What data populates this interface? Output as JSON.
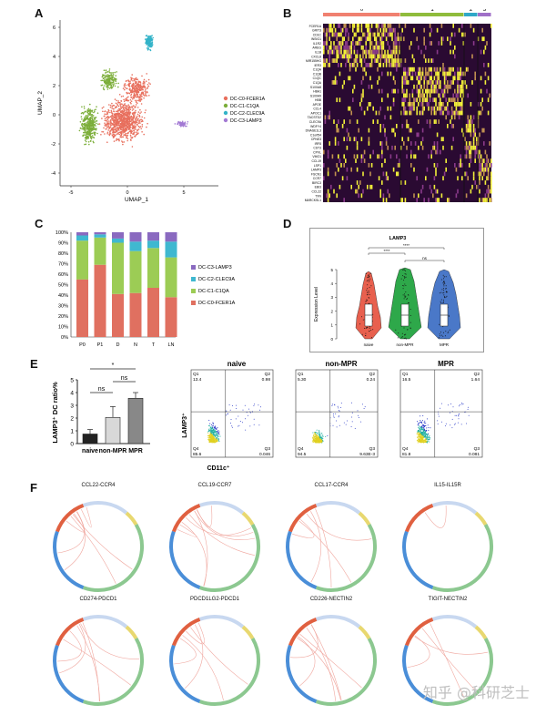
{
  "panel_labels": {
    "a": "A",
    "b": "B",
    "c": "C",
    "d": "D",
    "e": "E",
    "f": "F"
  },
  "panel_a": {
    "xlabel": "UMAP_1",
    "ylabel": "UMAP_2",
    "xticks": [
      "-5",
      "0",
      "5"
    ],
    "yticks": [
      "6",
      "4",
      "2",
      "0",
      "-2",
      "-4"
    ],
    "legend": [
      {
        "label": "DC-C0-FCER1A",
        "color": "#e8705e"
      },
      {
        "label": "DC-C1-C1QA",
        "color": "#7cae3a"
      },
      {
        "label": "DC-C2-CLEC9A",
        "color": "#33b3c8"
      },
      {
        "label": "DC-C3-LAMP3",
        "color": "#a37ad4"
      }
    ]
  },
  "panel_b": {
    "cluster_labels": [
      "0",
      "1",
      "2",
      "3"
    ],
    "cluster_colors": [
      "#f08070",
      "#8fbc3c",
      "#2fa8c8",
      "#a070c8"
    ],
    "genes": [
      "FCER1A",
      "GRIT3",
      "CD1C",
      "INSIG1",
      "IL1R2",
      "AREG",
      "IL1B",
      "CXCL8",
      "MIR155HG",
      "IER3",
      "C1QA",
      "C1QB",
      "C1QC",
      "C1QA",
      "S100A8",
      "HBA1",
      "S100A9",
      "HBB",
      "APOE",
      "CCL4",
      "APOC1",
      "TACSTD2",
      "CLEC9A",
      "WDFY4",
      "DNASE1L3",
      "C1orf54",
      "CPNE3",
      "IRF8",
      "CST3",
      "CPVL",
      "VMO1",
      "CCL19",
      "LSP1",
      "LAMP3",
      "FSCN1",
      "CCR7",
      "BIRC3",
      "EBI3",
      "CCL22",
      "TXN",
      "MARCKSL1"
    ]
  },
  "panel_c": {
    "chart_data": {
      "type": "bar",
      "stacked": true,
      "categories": [
        "P0",
        "P1",
        "D",
        "N",
        "T",
        "LN"
      ],
      "yticks": [
        "100%",
        "90%",
        "80%",
        "70%",
        "60%",
        "50%",
        "40%",
        "30%",
        "20%",
        "10%",
        "0%"
      ],
      "series": [
        {
          "name": "DC-C0-FCER1A",
          "color": "#e07060",
          "values": [
            55,
            69,
            41,
            42,
            47,
            38
          ]
        },
        {
          "name": "DC-C1-C1QA",
          "color": "#9ccc55",
          "values": [
            37,
            26,
            49,
            40,
            38,
            38
          ]
        },
        {
          "name": "DC-C2-CLEC9A",
          "color": "#3fb8d0",
          "values": [
            5,
            3,
            4,
            9,
            7,
            15
          ]
        },
        {
          "name": "DC-C3-LAMP3",
          "color": "#8a6ac0",
          "values": [
            3,
            2,
            6,
            9,
            8,
            9
          ]
        }
      ],
      "legend_order": [
        "DC-C3-LAMP3",
        "DC-C2-CLEC9A",
        "DC-C1-C1QA",
        "DC-C0-FCER1A"
      ]
    }
  },
  "panel_d": {
    "title": "LAMP3",
    "ylabel": "Expression Level",
    "yticks": [
      "5",
      "4",
      "3",
      "2",
      "1",
      "0"
    ],
    "sig": [
      "****",
      "****",
      "ns"
    ],
    "groups": [
      {
        "label": "naive",
        "color": "#e8604e"
      },
      {
        "label": "non-MPR",
        "color": "#2ea84a"
      },
      {
        "label": "MPR",
        "color": "#4a78c8"
      }
    ]
  },
  "panel_e": {
    "bar": {
      "ylabel": "LAMP3⁺ DC ratio%",
      "yticks": [
        "5",
        "4",
        "3",
        "2",
        "1",
        "0"
      ],
      "chart_data": {
        "type": "bar",
        "categories": [
          "naive",
          "non-MPR",
          "MPR"
        ],
        "values": [
          0.75,
          2.05,
          3.55
        ],
        "errors": [
          0.35,
          0.85,
          0.45
        ],
        "ylim": [
          0,
          5
        ]
      },
      "sig": [
        "*",
        "ns",
        "ns"
      ],
      "xlabel": "naive non-MPR MPR"
    },
    "flow": [
      {
        "title": "naive",
        "q1": "Q1",
        "q1v": "13.4",
        "q2": "Q2",
        "q2v": "0.98",
        "q4": "Q4",
        "q4v": "85.6",
        "q3": "Q3",
        "q3v": "0.046"
      },
      {
        "title": "non-MPR",
        "q1": "Q1",
        "q1v": "5.30",
        "q2": "Q2",
        "q2v": "0.24",
        "q4": "Q4",
        "q4v": "94.5",
        "q3": "Q3",
        "q3v": "9.63E-3"
      },
      {
        "title": "MPR",
        "q1": "Q1",
        "q1v": "16.5",
        "q2": "Q2",
        "q2v": "1.64",
        "q4": "Q4",
        "q4v": "81.8",
        "q3": "Q3",
        "q3v": "0.081"
      }
    ],
    "flow_ylabel": "LAMP3⁺",
    "flow_xlabel": "CD11c⁺"
  },
  "panel_f": {
    "titles": [
      "CCL22-CCR4",
      "CCL19-CCR7",
      "CCL17-CCR4",
      "IL15-IL15R",
      "CD274-PDCD1",
      "PDCD1LG2-PDCD1",
      "CD226-NECTIN2",
      "TIGIT-NECTIN2"
    ]
  },
  "watermark": "知乎 @科研芝士"
}
